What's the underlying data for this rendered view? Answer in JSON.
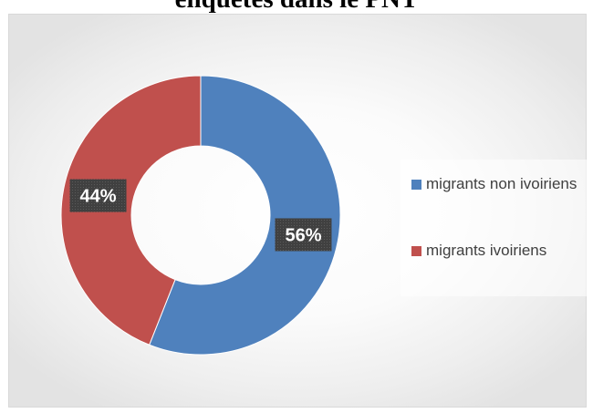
{
  "chart_data": {
    "type": "pie",
    "subtype": "doughnut",
    "title": "enquêtés dans le PNT",
    "categories": [
      "migrants non ivoiriens",
      "migrants ivoiriens"
    ],
    "values": [
      56,
      44
    ],
    "unit": "%",
    "data_labels": [
      "56%",
      "44%"
    ],
    "colors": [
      "#4f81bd",
      "#c0504d"
    ],
    "legend_position": "right",
    "grid": false
  }
}
